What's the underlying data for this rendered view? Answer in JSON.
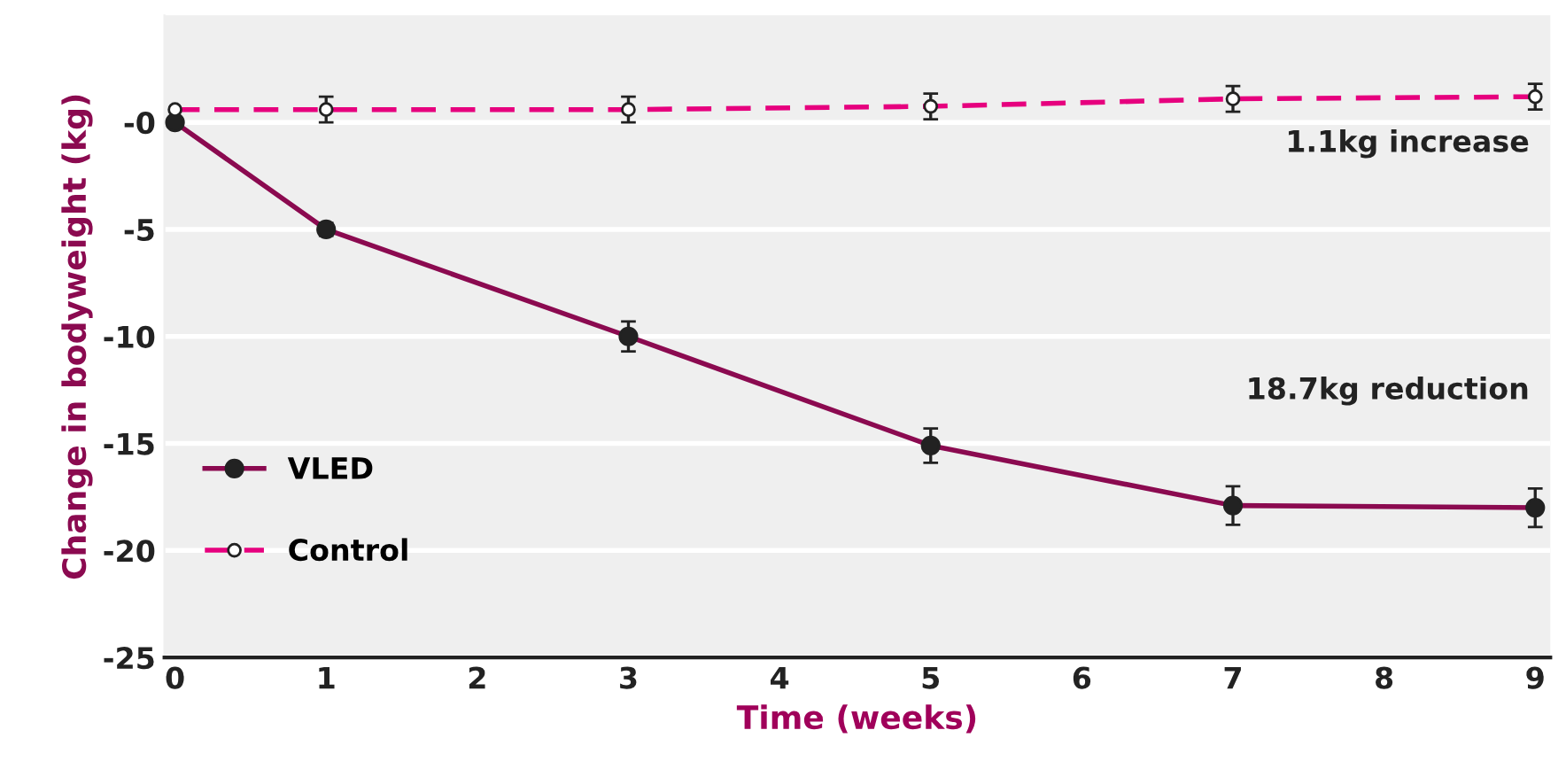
{
  "chart_data": {
    "type": "line",
    "xlabel": "Time (weeks)",
    "ylabel": "Change in bodyweight (kg)",
    "xlim": [
      -0.07,
      9.1
    ],
    "xticks": [
      0,
      1,
      2,
      3,
      4,
      5,
      6,
      7,
      8,
      9
    ],
    "ylim": [
      -25,
      5
    ],
    "yticks": [
      {
        "value": 0,
        "label": "-0"
      },
      -5,
      -10,
      -15,
      -20,
      -25
    ],
    "grid": "y",
    "legend": "bottom left",
    "marker": "circle",
    "series": [
      {
        "name": "VLED",
        "color": "#8b0a50",
        "line_style": "solid",
        "x": [
          0,
          1,
          3,
          5,
          7,
          9
        ],
        "values": [
          0,
          -5,
          -10,
          -15.1,
          -17.9,
          -18
        ],
        "errors": [
          null,
          0.3,
          0.7,
          0.8,
          0.9,
          0.9
        ]
      },
      {
        "name": "Control",
        "color": "#e6007e",
        "line_style": "dashed",
        "x": [
          0,
          1,
          3,
          5,
          7,
          9
        ],
        "values": [
          0.6,
          0.6,
          0.6,
          0.75,
          1.1,
          1.2
        ],
        "errors": [
          null,
          0.6,
          0.6,
          0.6,
          0.6,
          0.6
        ]
      }
    ],
    "annotations": [
      "1.1kg increase",
      "18.7kg reduction"
    ]
  }
}
